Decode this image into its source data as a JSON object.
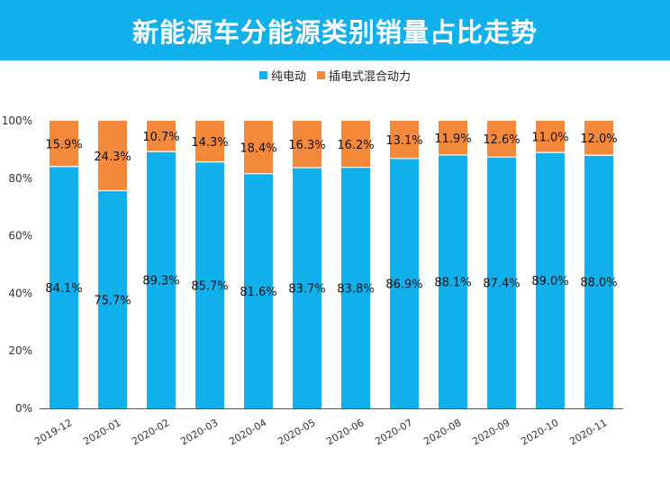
{
  "title": "新能源车分能源类别销量占比走势",
  "colors": {
    "header": "#0fb0ec",
    "bev": "#0fb0ec",
    "phev": "#f5893b"
  },
  "chart_data": {
    "type": "bar",
    "stacked": true,
    "categories": [
      "2019-12",
      "2020-01",
      "2020-02",
      "2020-03",
      "2020-04",
      "2020-05",
      "2020-06",
      "2020-07",
      "2020-08",
      "2020-09",
      "2020-10",
      "2020-11"
    ],
    "series": [
      {
        "name": "纯电动",
        "values": [
          84.1,
          75.7,
          89.3,
          85.7,
          81.6,
          83.7,
          83.8,
          86.9,
          88.1,
          87.4,
          89.0,
          88.0
        ],
        "labels": [
          "84.1%",
          "75.7%",
          "89.3%",
          "85.7%",
          "81.6%",
          "83.7%",
          "83.8%",
          "86.9%",
          "88.1%",
          "87.4%",
          "89.0%",
          "88.0%"
        ]
      },
      {
        "name": "插电式混合动力",
        "values": [
          15.9,
          24.3,
          10.7,
          14.3,
          18.4,
          16.3,
          16.2,
          13.1,
          11.9,
          12.6,
          11.0,
          12.0
        ],
        "labels": [
          "15.9%",
          "24.3%",
          "10.7%",
          "14.3%",
          "18.4%",
          "16.3%",
          "16.2%",
          "13.1%",
          "11.9%",
          "12.6%",
          "11.0%",
          "12.0%"
        ]
      }
    ],
    "ylim": [
      0,
      100
    ],
    "yticks": [
      "0%",
      "20%",
      "40%",
      "60%",
      "80%",
      "100%"
    ],
    "legend_position": "top-center",
    "grid": false
  }
}
